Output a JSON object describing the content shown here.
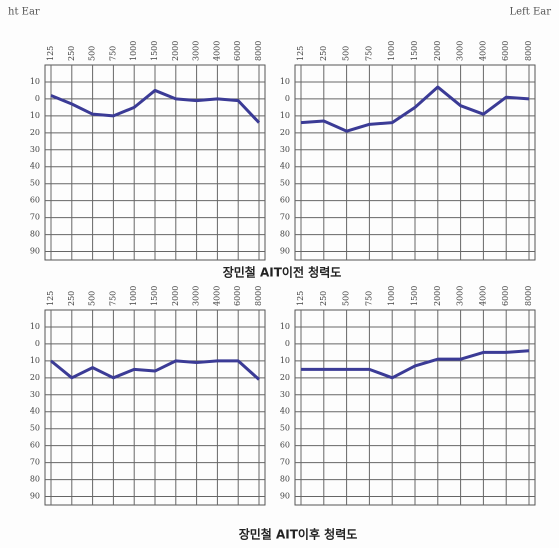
{
  "header": {
    "right_ear": "ht Ear",
    "left_ear": "Left Ear"
  },
  "captions": [
    "장민철 AIT이전 청력도",
    "장민철 AIT이후 청력도"
  ],
  "chart_data": [
    {
      "type": "line",
      "categories": [
        "125",
        "250",
        "500",
        "750",
        "1000",
        "1500",
        "2000",
        "3000",
        "4000",
        "6000",
        "8000"
      ],
      "values": [
        -2,
        3,
        9,
        10,
        5,
        -5,
        0,
        1,
        0,
        1,
        14
      ],
      "color": "#3b3b96",
      "ylim": [
        -20,
        95
      ],
      "invert_y": true,
      "grid": true,
      "yticks": [
        {
          "value": -10,
          "label": "10"
        },
        0,
        10,
        20,
        30,
        40,
        50,
        60,
        70,
        80,
        90
      ]
    },
    {
      "type": "line",
      "categories": [
        "125",
        "250",
        "500",
        "750",
        "1000",
        "1500",
        "2000",
        "3000",
        "4000",
        "6000",
        "8000"
      ],
      "values": [
        14,
        13,
        19,
        15,
        14,
        5,
        -7,
        4,
        9,
        -1,
        0
      ],
      "color": "#3b3b96",
      "ylim": [
        -20,
        95
      ],
      "invert_y": true,
      "grid": true,
      "yticks": [
        {
          "value": -10,
          "label": "10"
        },
        0,
        10,
        20,
        30,
        40,
        50,
        60,
        70,
        80,
        90
      ]
    },
    {
      "type": "line",
      "categories": [
        "125",
        "250",
        "500",
        "750",
        "1000",
        "1500",
        "2000",
        "3000",
        "4000",
        "6000",
        "8000"
      ],
      "values": [
        10,
        20,
        14,
        20,
        15,
        16,
        10,
        11,
        10,
        10,
        21
      ],
      "color": "#3b3b96",
      "ylim": [
        -20,
        95
      ],
      "invert_y": true,
      "grid": true,
      "yticks": [
        {
          "value": -10,
          "label": "10"
        },
        0,
        10,
        20,
        30,
        40,
        50,
        60,
        70,
        80,
        90
      ]
    },
    {
      "type": "line",
      "categories": [
        "125",
        "250",
        "500",
        "750",
        "1000",
        "1500",
        "2000",
        "3000",
        "4000",
        "6000",
        "8000"
      ],
      "values": [
        15,
        15,
        15,
        15,
        20,
        13,
        9,
        9,
        5,
        5,
        4
      ],
      "color": "#3b3b96",
      "ylim": [
        -20,
        95
      ],
      "invert_y": true,
      "grid": true,
      "yticks": [
        {
          "value": -10,
          "label": "10"
        },
        0,
        10,
        20,
        30,
        40,
        50,
        60,
        70,
        80,
        90
      ]
    }
  ]
}
